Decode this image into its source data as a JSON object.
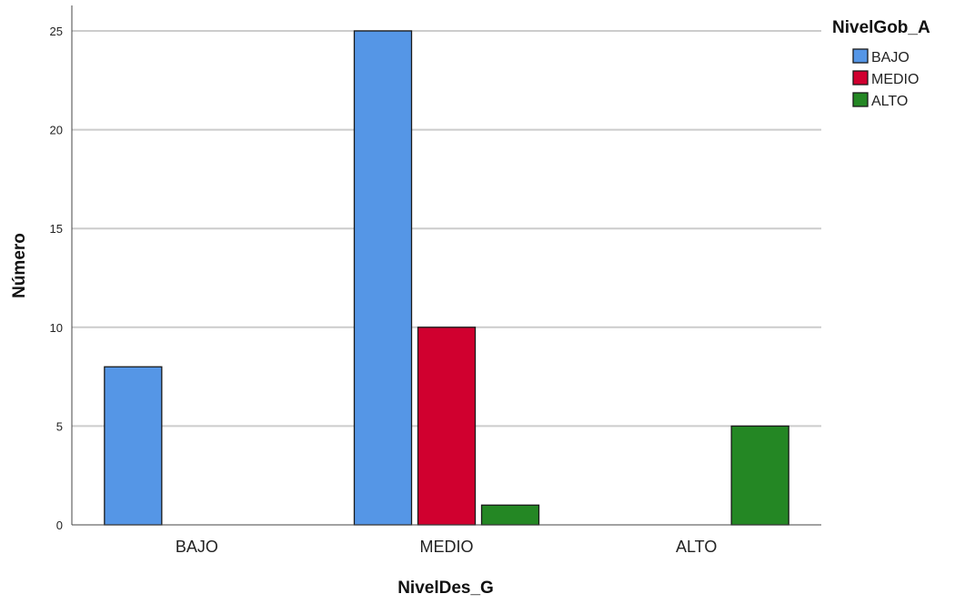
{
  "chart_data": {
    "type": "bar",
    "categories": [
      "BAJO",
      "MEDIO",
      "ALTO"
    ],
    "series": [
      {
        "name": "BAJO",
        "values": [
          8,
          25,
          0
        ],
        "color": "#5596e6"
      },
      {
        "name": "MEDIO",
        "values": [
          0,
          10,
          0
        ],
        "color": "#d0002f"
      },
      {
        "name": "ALTO",
        "values": [
          0,
          1,
          5
        ],
        "color": "#248724"
      }
    ],
    "xlabel": "NivelDes_G",
    "ylabel": "Número",
    "ylim": [
      0,
      25
    ],
    "yticks": [
      0,
      5,
      10,
      15,
      20,
      25
    ],
    "grid": true,
    "legend": {
      "title": "NivelGob_A",
      "placement": "top-right"
    }
  }
}
